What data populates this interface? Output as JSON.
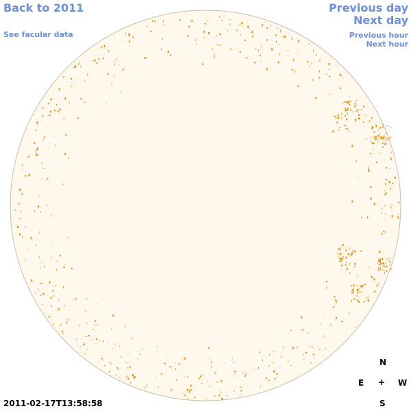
{
  "nav": {
    "back_label": "Back to 2011",
    "facular_label": "See facular data",
    "prev_day_label": "Previous day",
    "next_day_label": "Next day",
    "prev_hour_label": "Previous hour",
    "next_hour_label": "Next hour"
  },
  "compass": {
    "north": "N",
    "east": "E",
    "center": "+",
    "west": "W",
    "south": "S"
  },
  "timestamp": "2011-02-17T13:58:58",
  "colors": {
    "link": "#6a8fdc",
    "disk_fill": "#fff8ec",
    "disk_stroke": "#c9bfa8",
    "spot": "#f08a00"
  }
}
